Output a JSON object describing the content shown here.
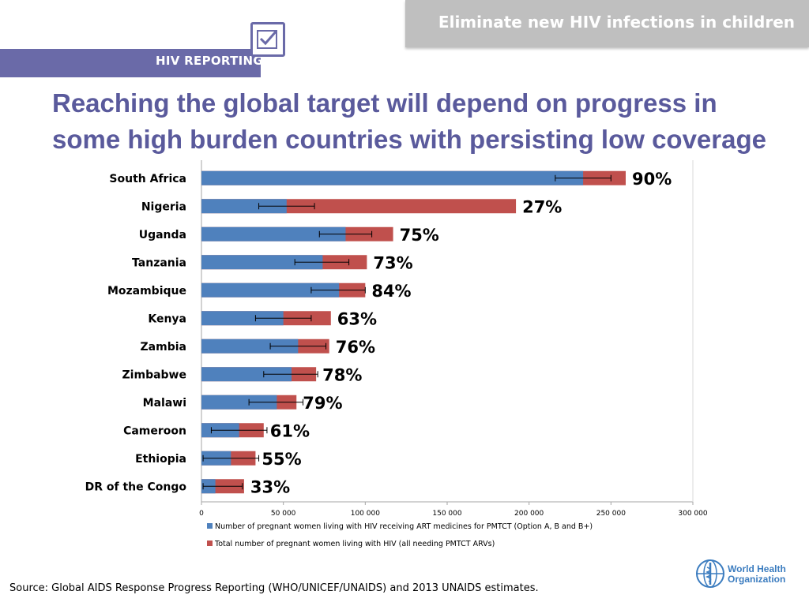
{
  "header": {
    "banner_title": "Eliminate new HIV infections in children",
    "logo_label": "HIV REPORTING",
    "headline_line1": "Reaching the global target will depend on progress in",
    "headline_line2": "some high burden countries with persisting low coverage"
  },
  "source_note": "Source: Global AIDS Response Progress Reporting (WHO/UNICEF/UNAIDS) and 2013 UNAIDS estimates.",
  "who_logo": {
    "line1": "World Health",
    "line2": "Organization",
    "icon": "who-emblem-icon"
  },
  "colors": {
    "series_receiving": "#4f81bd",
    "series_total": "#c0504d",
    "headline": "#5a5a9c",
    "band": "#6a6aa8"
  },
  "chart_data": {
    "type": "bar",
    "orientation": "horizontal",
    "stacked": false,
    "categories": [
      "South Africa",
      "Nigeria",
      "Uganda",
      "Tanzania",
      "Mozambique",
      "Kenya",
      "Zambia",
      "Zimbabwe",
      "Malawi",
      "Cameroon",
      "Ethiopia",
      "DR of the Congo"
    ],
    "series": [
      {
        "name": "Number of pregnant women living with HIV receiving ART medicines for PMTCT (Option A, B and B+)",
        "values": [
          233000,
          52000,
          88000,
          74000,
          84000,
          50000,
          59000,
          55000,
          46000,
          23000,
          18000,
          8500
        ],
        "error_low": [
          216000,
          35000,
          72000,
          57000,
          67000,
          33000,
          42000,
          38000,
          29000,
          6000,
          1000,
          1000
        ],
        "error_high": [
          250000,
          69000,
          104000,
          90000,
          100000,
          67000,
          76000,
          71000,
          62000,
          40000,
          35000,
          25000
        ]
      },
      {
        "name": "Total number of pregnant women living with HIV (all needing PMTCT ARVs)",
        "values": [
          259000,
          192000,
          117000,
          101000,
          100000,
          79000,
          78000,
          70000,
          58000,
          38000,
          33000,
          26000
        ]
      }
    ],
    "data_labels": [
      "90%",
      "27%",
      "75%",
      "73%",
      "84%",
      "63%",
      "76%",
      "78%",
      "79%",
      "61%",
      "55%",
      "33%"
    ],
    "x_ticks": [
      "0",
      "50 000",
      "100 000",
      "150 000",
      "200 000",
      "250 000",
      "300 000"
    ],
    "xlim": [
      0,
      300000
    ],
    "grid": false,
    "legend_placement": "bottom"
  }
}
